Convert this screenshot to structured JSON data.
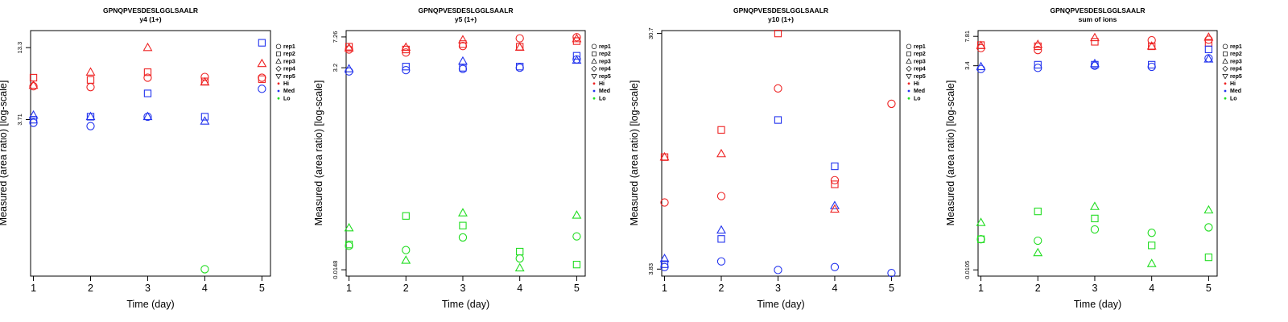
{
  "colors": {
    "Hi": "#ee2222",
    "Med": "#2233ee",
    "Lo": "#22dd22",
    "axis": "#000000"
  },
  "legend": {
    "items": [
      {
        "label": "rep1",
        "marker": "circle"
      },
      {
        "label": "rep2",
        "marker": "square"
      },
      {
        "label": "rep3",
        "marker": "triangle-up"
      },
      {
        "label": "rep4",
        "marker": "diamond"
      },
      {
        "label": "rep5",
        "marker": "triangle-down"
      },
      {
        "label": "Hi",
        "marker": "dot",
        "color": "Hi"
      },
      {
        "label": "Med",
        "marker": "dot",
        "color": "Med"
      },
      {
        "label": "Lo",
        "marker": "dot",
        "color": "Lo"
      }
    ]
  },
  "chart_data": [
    {
      "type": "scatter",
      "title": "GPNQPVESDESLGGLSAALR",
      "subtitle": "y4 (1+)",
      "xlabel": "Time (day)",
      "ylabel": "Measured (area ratio) [log-scale]",
      "xticks": [
        "1",
        "2",
        "3",
        "4",
        "5"
      ],
      "xlim": [
        0.95,
        5.15
      ],
      "ylim": [
        0.23,
        18
      ],
      "yscale": "log",
      "yticks": [
        {
          "value": 3.71,
          "label": "3.71"
        },
        {
          "value": 13.3,
          "label": "13.3"
        }
      ],
      "points": [
        {
          "x": 1,
          "y": 7.8,
          "rep": "rep2",
          "level": "Hi"
        },
        {
          "x": 1,
          "y": 6.8,
          "rep": "rep3",
          "level": "Hi"
        },
        {
          "x": 1,
          "y": 6.7,
          "rep": "rep1",
          "level": "Hi"
        },
        {
          "x": 1,
          "y": 4.0,
          "rep": "rep3",
          "level": "Med"
        },
        {
          "x": 1,
          "y": 3.7,
          "rep": "rep2",
          "level": "Med"
        },
        {
          "x": 1,
          "y": 3.5,
          "rep": "rep1",
          "level": "Med"
        },
        {
          "x": 2,
          "y": 8.6,
          "rep": "rep3",
          "level": "Hi"
        },
        {
          "x": 2,
          "y": 7.5,
          "rep": "rep2",
          "level": "Hi"
        },
        {
          "x": 2,
          "y": 6.6,
          "rep": "rep1",
          "level": "Hi"
        },
        {
          "x": 2,
          "y": 3.9,
          "rep": "rep3",
          "level": "Med"
        },
        {
          "x": 2,
          "y": 3.9,
          "rep": "rep2",
          "level": "Med"
        },
        {
          "x": 2,
          "y": 3.3,
          "rep": "rep1",
          "level": "Med"
        },
        {
          "x": 3,
          "y": 13.3,
          "rep": "rep3",
          "level": "Hi"
        },
        {
          "x": 3,
          "y": 8.6,
          "rep": "rep2",
          "level": "Hi"
        },
        {
          "x": 3,
          "y": 7.8,
          "rep": "rep1",
          "level": "Hi"
        },
        {
          "x": 3,
          "y": 5.9,
          "rep": "rep2",
          "level": "Med"
        },
        {
          "x": 3,
          "y": 3.9,
          "rep": "rep1",
          "level": "Med"
        },
        {
          "x": 3,
          "y": 3.9,
          "rep": "rep3",
          "level": "Med"
        },
        {
          "x": 4,
          "y": 7.9,
          "rep": "rep1",
          "level": "Hi"
        },
        {
          "x": 4,
          "y": 7.3,
          "rep": "rep2",
          "level": "Hi"
        },
        {
          "x": 4,
          "y": 7.2,
          "rep": "rep3",
          "level": "Hi"
        },
        {
          "x": 4,
          "y": 3.9,
          "rep": "rep2",
          "level": "Med"
        },
        {
          "x": 4,
          "y": 3.6,
          "rep": "rep3",
          "level": "Med"
        },
        {
          "x": 4,
          "y": 0.26,
          "rep": "rep1",
          "level": "Lo"
        },
        {
          "x": 5,
          "y": 14.5,
          "rep": "rep2",
          "level": "Med"
        },
        {
          "x": 5,
          "y": 10.0,
          "rep": "rep3",
          "level": "Hi"
        },
        {
          "x": 5,
          "y": 7.8,
          "rep": "rep1",
          "level": "Hi"
        },
        {
          "x": 5,
          "y": 7.6,
          "rep": "rep2",
          "level": "Hi"
        },
        {
          "x": 5,
          "y": 6.4,
          "rep": "rep1",
          "level": "Med"
        }
      ]
    },
    {
      "type": "scatter",
      "title": "GPNQPVESDESLGGLSAALR",
      "subtitle": "y5 (1+)",
      "xlabel": "Time (day)",
      "ylabel": "Measured (area ratio) [log-scale]",
      "xticks": [
        "1",
        "2",
        "3",
        "4",
        "5"
      ],
      "xlim": [
        0.95,
        5.15
      ],
      "ylim": [
        0.0125,
        8.6
      ],
      "yscale": "log",
      "yticks": [
        {
          "value": 0.0148,
          "label": "0.0148"
        },
        {
          "value": 3.2,
          "label": "3.2"
        },
        {
          "value": 7.26,
          "label": "7.26"
        }
      ],
      "points": [
        {
          "x": 1,
          "y": 5.6,
          "rep": "rep2",
          "level": "Hi"
        },
        {
          "x": 1,
          "y": 5.4,
          "rep": "rep3",
          "level": "Hi"
        },
        {
          "x": 1,
          "y": 5.2,
          "rep": "rep1",
          "level": "Hi"
        },
        {
          "x": 1,
          "y": 3.1,
          "rep": "rep3",
          "level": "Med"
        },
        {
          "x": 1,
          "y": 2.9,
          "rep": "rep1",
          "level": "Med"
        },
        {
          "x": 1,
          "y": 0.045,
          "rep": "rep3",
          "level": "Lo"
        },
        {
          "x": 1,
          "y": 0.029,
          "rep": "rep2",
          "level": "Lo"
        },
        {
          "x": 1,
          "y": 0.028,
          "rep": "rep1",
          "level": "Lo"
        },
        {
          "x": 2,
          "y": 5.5,
          "rep": "rep3",
          "level": "Hi"
        },
        {
          "x": 2,
          "y": 5.2,
          "rep": "rep2",
          "level": "Hi"
        },
        {
          "x": 2,
          "y": 4.8,
          "rep": "rep1",
          "level": "Hi"
        },
        {
          "x": 2,
          "y": 3.3,
          "rep": "rep2",
          "level": "Med"
        },
        {
          "x": 2,
          "y": 3.0,
          "rep": "rep1",
          "level": "Med"
        },
        {
          "x": 2,
          "y": 0.062,
          "rep": "rep2",
          "level": "Lo"
        },
        {
          "x": 2,
          "y": 0.025,
          "rep": "rep1",
          "level": "Lo"
        },
        {
          "x": 2,
          "y": 0.019,
          "rep": "rep3",
          "level": "Lo"
        },
        {
          "x": 3,
          "y": 6.7,
          "rep": "rep3",
          "level": "Hi"
        },
        {
          "x": 3,
          "y": 6.0,
          "rep": "rep2",
          "level": "Hi"
        },
        {
          "x": 3,
          "y": 5.7,
          "rep": "rep1",
          "level": "Hi"
        },
        {
          "x": 3,
          "y": 3.8,
          "rep": "rep3",
          "level": "Med"
        },
        {
          "x": 3,
          "y": 3.2,
          "rep": "rep2",
          "level": "Med"
        },
        {
          "x": 3,
          "y": 3.1,
          "rep": "rep1",
          "level": "Med"
        },
        {
          "x": 3,
          "y": 0.067,
          "rep": "rep3",
          "level": "Lo"
        },
        {
          "x": 3,
          "y": 0.048,
          "rep": "rep2",
          "level": "Lo"
        },
        {
          "x": 3,
          "y": 0.035,
          "rep": "rep1",
          "level": "Lo"
        },
        {
          "x": 4,
          "y": 7.0,
          "rep": "rep1",
          "level": "Hi"
        },
        {
          "x": 4,
          "y": 5.6,
          "rep": "rep2",
          "level": "Hi"
        },
        {
          "x": 4,
          "y": 5.5,
          "rep": "rep3",
          "level": "Hi"
        },
        {
          "x": 4,
          "y": 3.3,
          "rep": "rep2",
          "level": "Med"
        },
        {
          "x": 4,
          "y": 3.2,
          "rep": "rep1",
          "level": "Med"
        },
        {
          "x": 4,
          "y": 0.024,
          "rep": "rep2",
          "level": "Lo"
        },
        {
          "x": 4,
          "y": 0.02,
          "rep": "rep1",
          "level": "Lo"
        },
        {
          "x": 4,
          "y": 0.0155,
          "rep": "rep3",
          "level": "Lo"
        },
        {
          "x": 5,
          "y": 7.2,
          "rep": "rep1",
          "level": "Hi"
        },
        {
          "x": 5,
          "y": 6.9,
          "rep": "rep3",
          "level": "Hi"
        },
        {
          "x": 5,
          "y": 6.5,
          "rep": "rep2",
          "level": "Hi"
        },
        {
          "x": 5,
          "y": 4.4,
          "rep": "rep2",
          "level": "Med"
        },
        {
          "x": 5,
          "y": 4.0,
          "rep": "rep1",
          "level": "Med"
        },
        {
          "x": 5,
          "y": 3.9,
          "rep": "rep3",
          "level": "Med"
        },
        {
          "x": 5,
          "y": 0.063,
          "rep": "rep3",
          "level": "Lo"
        },
        {
          "x": 5,
          "y": 0.036,
          "rep": "rep1",
          "level": "Lo"
        },
        {
          "x": 5,
          "y": 0.017,
          "rep": "rep2",
          "level": "Lo"
        }
      ]
    },
    {
      "type": "scatter",
      "title": "GPNQPVESDESLGGLSAALR",
      "subtitle": "y10 (1+)",
      "xlabel": "Time (day)",
      "ylabel": "Measured (area ratio) [log-scale]",
      "xticks": [
        "1",
        "2",
        "3",
        "4",
        "5"
      ],
      "xlim": [
        0.95,
        5.15
      ],
      "ylim": [
        3.6,
        31.5
      ],
      "yscale": "log",
      "yticks": [
        {
          "value": 3.83,
          "label": "3.83"
        },
        {
          "value": 30.7,
          "label": "30.7"
        }
      ],
      "points": [
        {
          "x": 1,
          "y": 10.3,
          "rep": "rep2",
          "level": "Hi"
        },
        {
          "x": 1,
          "y": 10.3,
          "rep": "rep3",
          "level": "Hi"
        },
        {
          "x": 1,
          "y": 6.9,
          "rep": "rep1",
          "level": "Hi"
        },
        {
          "x": 1,
          "y": 4.2,
          "rep": "rep3",
          "level": "Med"
        },
        {
          "x": 1,
          "y": 4.0,
          "rep": "rep2",
          "level": "Med"
        },
        {
          "x": 1,
          "y": 3.9,
          "rep": "rep1",
          "level": "Med"
        },
        {
          "x": 2,
          "y": 13.1,
          "rep": "rep2",
          "level": "Hi"
        },
        {
          "x": 2,
          "y": 10.6,
          "rep": "rep3",
          "level": "Hi"
        },
        {
          "x": 2,
          "y": 7.3,
          "rep": "rep1",
          "level": "Hi"
        },
        {
          "x": 2,
          "y": 5.4,
          "rep": "rep3",
          "level": "Med"
        },
        {
          "x": 2,
          "y": 5.0,
          "rep": "rep2",
          "level": "Med"
        },
        {
          "x": 2,
          "y": 4.1,
          "rep": "rep1",
          "level": "Med"
        },
        {
          "x": 3,
          "y": 30.7,
          "rep": "rep2",
          "level": "Hi"
        },
        {
          "x": 3,
          "y": 18.9,
          "rep": "rep1",
          "level": "Hi"
        },
        {
          "x": 3,
          "y": 14.3,
          "rep": "rep2",
          "level": "Med"
        },
        {
          "x": 3,
          "y": 3.8,
          "rep": "rep1",
          "level": "Med"
        },
        {
          "x": 4,
          "y": 9.5,
          "rep": "rep2",
          "level": "Med"
        },
        {
          "x": 4,
          "y": 8.4,
          "rep": "rep1",
          "level": "Hi"
        },
        {
          "x": 4,
          "y": 8.1,
          "rep": "rep2",
          "level": "Hi"
        },
        {
          "x": 4,
          "y": 6.7,
          "rep": "rep3",
          "level": "Med"
        },
        {
          "x": 4,
          "y": 6.5,
          "rep": "rep3",
          "level": "Hi"
        },
        {
          "x": 4,
          "y": 3.9,
          "rep": "rep1",
          "level": "Med"
        },
        {
          "x": 5,
          "y": 16.5,
          "rep": "rep1",
          "level": "Hi"
        },
        {
          "x": 5,
          "y": 3.7,
          "rep": "rep1",
          "level": "Med"
        }
      ]
    },
    {
      "type": "scatter",
      "title": "GPNQPVESDESLGGLSAALR",
      "subtitle": "sum of ions",
      "xlabel": "Time (day)",
      "ylabel": "Measured (area ratio) [log-scale]",
      "xticks": [
        "1",
        "2",
        "3",
        "4",
        "5"
      ],
      "xlim": [
        0.95,
        5.15
      ],
      "ylim": [
        0.0088,
        9.2
      ],
      "yscale": "log",
      "yticks": [
        {
          "value": 0.0105,
          "label": "0.0105"
        },
        {
          "value": 3.4,
          "label": "3.4"
        },
        {
          "value": 7.81,
          "label": "7.81"
        }
      ],
      "points": [
        {
          "x": 1,
          "y": 6.1,
          "rep": "rep2",
          "level": "Hi"
        },
        {
          "x": 1,
          "y": 6.0,
          "rep": "rep3",
          "level": "Hi"
        },
        {
          "x": 1,
          "y": 5.6,
          "rep": "rep1",
          "level": "Hi"
        },
        {
          "x": 1,
          "y": 3.3,
          "rep": "rep3",
          "level": "Med"
        },
        {
          "x": 1,
          "y": 3.1,
          "rep": "rep1",
          "level": "Med"
        },
        {
          "x": 1,
          "y": 0.04,
          "rep": "rep3",
          "level": "Lo"
        },
        {
          "x": 1,
          "y": 0.025,
          "rep": "rep2",
          "level": "Lo"
        },
        {
          "x": 1,
          "y": 0.025,
          "rep": "rep1",
          "level": "Lo"
        },
        {
          "x": 2,
          "y": 6.2,
          "rep": "rep3",
          "level": "Hi"
        },
        {
          "x": 2,
          "y": 5.9,
          "rep": "rep2",
          "level": "Hi"
        },
        {
          "x": 2,
          "y": 5.3,
          "rep": "rep1",
          "level": "Hi"
        },
        {
          "x": 2,
          "y": 3.5,
          "rep": "rep2",
          "level": "Med"
        },
        {
          "x": 2,
          "y": 3.2,
          "rep": "rep1",
          "level": "Med"
        },
        {
          "x": 2,
          "y": 0.055,
          "rep": "rep2",
          "level": "Lo"
        },
        {
          "x": 2,
          "y": 0.024,
          "rep": "rep1",
          "level": "Lo"
        },
        {
          "x": 2,
          "y": 0.017,
          "rep": "rep3",
          "level": "Lo"
        },
        {
          "x": 3,
          "y": 7.5,
          "rep": "rep3",
          "level": "Hi"
        },
        {
          "x": 3,
          "y": 6.7,
          "rep": "rep2",
          "level": "Hi"
        },
        {
          "x": 3,
          "y": 3.6,
          "rep": "rep3",
          "level": "Med"
        },
        {
          "x": 3,
          "y": 3.5,
          "rep": "rep2",
          "level": "Med"
        },
        {
          "x": 3,
          "y": 3.4,
          "rep": "rep1",
          "level": "Med"
        },
        {
          "x": 3,
          "y": 0.063,
          "rep": "rep3",
          "level": "Lo"
        },
        {
          "x": 3,
          "y": 0.045,
          "rep": "rep2",
          "level": "Lo"
        },
        {
          "x": 3,
          "y": 0.033,
          "rep": "rep1",
          "level": "Lo"
        },
        {
          "x": 4,
          "y": 7.0,
          "rep": "rep1",
          "level": "Hi"
        },
        {
          "x": 4,
          "y": 5.9,
          "rep": "rep2",
          "level": "Hi"
        },
        {
          "x": 4,
          "y": 5.9,
          "rep": "rep3",
          "level": "Hi"
        },
        {
          "x": 4,
          "y": 3.5,
          "rep": "rep2",
          "level": "Med"
        },
        {
          "x": 4,
          "y": 3.3,
          "rep": "rep1",
          "level": "Med"
        },
        {
          "x": 4,
          "y": 0.03,
          "rep": "rep1",
          "level": "Lo"
        },
        {
          "x": 4,
          "y": 0.021,
          "rep": "rep2",
          "level": "Lo"
        },
        {
          "x": 4,
          "y": 0.0125,
          "rep": "rep3",
          "level": "Lo"
        },
        {
          "x": 5,
          "y": 7.6,
          "rep": "rep3",
          "level": "Hi"
        },
        {
          "x": 5,
          "y": 7.1,
          "rep": "rep1",
          "level": "Hi"
        },
        {
          "x": 5,
          "y": 6.5,
          "rep": "rep2",
          "level": "Hi"
        },
        {
          "x": 5,
          "y": 5.4,
          "rep": "rep2",
          "level": "Med"
        },
        {
          "x": 5,
          "y": 4.2,
          "rep": "rep1",
          "level": "Med"
        },
        {
          "x": 5,
          "y": 4.1,
          "rep": "rep3",
          "level": "Med"
        },
        {
          "x": 5,
          "y": 0.057,
          "rep": "rep3",
          "level": "Lo"
        },
        {
          "x": 5,
          "y": 0.035,
          "rep": "rep1",
          "level": "Lo"
        },
        {
          "x": 5,
          "y": 0.015,
          "rep": "rep2",
          "level": "Lo"
        }
      ]
    }
  ]
}
